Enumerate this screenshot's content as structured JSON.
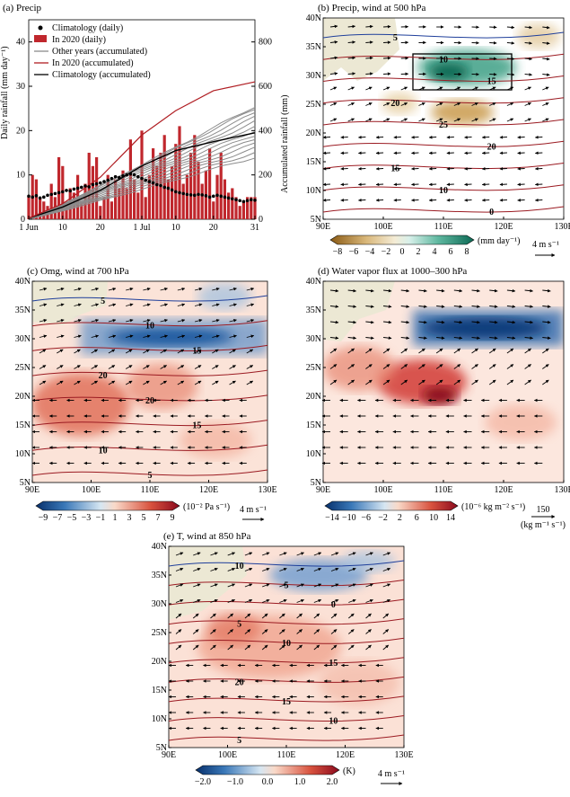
{
  "chart_data": [
    {
      "type": "bar",
      "panel": "(a) Precip",
      "xlabel": "",
      "ylabel_left": "Daily rainfall (mm day⁻¹)",
      "ylabel_right": "Accumulated rainfall (mm)",
      "ylim_left": [
        0,
        45
      ],
      "ylim_right": [
        0,
        900
      ],
      "left_ticks": [
        "0",
        "10",
        "20",
        "30",
        "40"
      ],
      "right_ticks": [
        "0",
        "200",
        "400",
        "600",
        "800"
      ],
      "x_ticks": [
        "1 Jun",
        "10",
        "20",
        "1 Jul",
        "10",
        "20",
        "31"
      ],
      "x_tick_days": [
        1,
        10,
        20,
        31,
        40,
        50,
        61
      ],
      "legend": [
        {
          "label": "Climatology (daily)",
          "kind": "dot",
          "color": "#000000"
        },
        {
          "label": "In 2020 (daily)",
          "kind": "bar",
          "color": "#c0272d"
        },
        {
          "label": "Other years (accumulated)",
          "kind": "line",
          "color": "#8c8c8c"
        },
        {
          "label": "In 2020 (accumulated)",
          "kind": "line",
          "color": "#b01e23"
        },
        {
          "label": "Climatology (accumulated)",
          "kind": "line",
          "color": "#000000"
        }
      ],
      "series": [
        {
          "name": "In 2020 (daily)",
          "x": [
            1,
            2,
            3,
            4,
            5,
            6,
            7,
            8,
            9,
            10,
            11,
            12,
            13,
            14,
            15,
            16,
            17,
            18,
            19,
            20,
            21,
            22,
            23,
            24,
            25,
            26,
            27,
            28,
            29,
            30,
            31,
            32,
            33,
            34,
            35,
            36,
            37,
            38,
            39,
            40,
            41,
            42,
            43,
            44,
            45,
            46,
            47,
            48,
            49,
            50,
            51,
            52,
            53,
            54,
            55,
            56,
            57,
            58,
            59,
            60,
            61
          ],
          "values": [
            5,
            10,
            9,
            5,
            4,
            3,
            8,
            5,
            14,
            12,
            4,
            7,
            6,
            10,
            4,
            8,
            15,
            12,
            14,
            3,
            5,
            10,
            4,
            9,
            7,
            11,
            7,
            18,
            9,
            6,
            20,
            5,
            10,
            16,
            12,
            15,
            19,
            9,
            12,
            17,
            21,
            8,
            10,
            15,
            19,
            13,
            8,
            11,
            16,
            4,
            10,
            15,
            9,
            6,
            7,
            5,
            3,
            4,
            5,
            5,
            5
          ]
        },
        {
          "name": "Climatology (daily)",
          "x": [
            1,
            2,
            3,
            4,
            5,
            6,
            7,
            8,
            9,
            10,
            11,
            12,
            13,
            14,
            15,
            16,
            17,
            18,
            19,
            20,
            21,
            22,
            23,
            24,
            25,
            26,
            27,
            28,
            29,
            30,
            31,
            32,
            33,
            34,
            35,
            36,
            37,
            38,
            39,
            40,
            41,
            42,
            43,
            44,
            45,
            46,
            47,
            48,
            49,
            50,
            51,
            52,
            53,
            54,
            55,
            56,
            57,
            58,
            59,
            60,
            61
          ],
          "values": [
            5.2,
            5.0,
            5.3,
            4.8,
            5.0,
            5.4,
            5.6,
            5.8,
            6.0,
            6.2,
            6.5,
            6.4,
            6.8,
            7.0,
            7.2,
            7.5,
            7.3,
            7.8,
            8.0,
            8.2,
            8.5,
            8.8,
            9.2,
            9.6,
            9.4,
            9.8,
            10.0,
            10.2,
            10.0,
            9.6,
            9.2,
            8.8,
            8.5,
            8.2,
            7.8,
            7.6,
            7.2,
            7.0,
            6.6,
            6.2,
            6.0,
            5.8,
            5.6,
            5.5,
            5.4,
            5.6,
            5.5,
            5.3,
            5.0,
            5.2,
            5.4,
            5.2,
            5.0,
            4.8,
            4.6,
            4.4,
            4.2,
            4.0,
            4.2,
            4.4,
            4.3
          ]
        },
        {
          "name": "In 2020 (accumulated)",
          "x": [
            1,
            10,
            20,
            31,
            40,
            50,
            61
          ],
          "values": [
            5,
            70,
            190,
            380,
            490,
            580,
            620
          ]
        },
        {
          "name": "Climatology (accumulated)",
          "x": [
            1,
            10,
            20,
            31,
            40,
            50,
            61
          ],
          "values": [
            5,
            55,
            130,
            240,
            310,
            350,
            390
          ]
        }
      ]
    },
    {
      "type": "heatmap",
      "panel": "(b) Precip, wind at 500 hPa",
      "colorbar_ticks": [
        "−8",
        "−6",
        "−4",
        "−2",
        "0",
        "2",
        "4",
        "6",
        "8"
      ],
      "colorbar_unit": "(mm day⁻¹)",
      "wind_ref": "4 m s⁻¹",
      "contour_labels": [
        "5",
        "10",
        "15",
        "20",
        "25",
        "20",
        "15",
        "10",
        "0"
      ]
    },
    {
      "type": "heatmap",
      "panel": "(c) Omg, wind at 700 hPa",
      "colorbar_ticks": [
        "−9",
        "−7",
        "−5",
        "−3",
        "−1",
        "1",
        "3",
        "5",
        "7",
        "9"
      ],
      "colorbar_unit": "(10⁻² Pa s⁻¹)",
      "wind_ref": "4 m s⁻¹",
      "contour_labels": [
        "5",
        "10",
        "15",
        "20",
        "20",
        "15",
        "10",
        "5"
      ]
    },
    {
      "type": "heatmap",
      "panel": "(d) Water vapor flux at 1000–300 hPa",
      "colorbar_ticks": [
        "−14",
        "−10",
        "−6",
        "−2",
        "2",
        "6",
        "10",
        "14"
      ],
      "colorbar_unit": "(10⁻⁶ kg m⁻² s⁻¹)",
      "wind_ref": "150",
      "wind_ref_unit": "(kg m⁻¹ s⁻¹)",
      "contour_labels": []
    },
    {
      "type": "heatmap",
      "panel": "(e) T, wind at 850 hPa",
      "colorbar_ticks": [
        "−2.0",
        "−1.0",
        "0.0",
        "1.0",
        "2.0"
      ],
      "colorbar_unit": "(K)",
      "wind_ref": "4 m s⁻¹",
      "contour_labels": [
        "10",
        "5",
        "0",
        "5",
        "10",
        "15",
        "20",
        "15",
        "10",
        "5"
      ]
    }
  ],
  "map_axes": {
    "lon_ticks": [
      "90E",
      "100E",
      "110E",
      "120E",
      "130E"
    ],
    "lat_ticks": [
      "40N",
      "35N",
      "30N",
      "25N",
      "20N",
      "15N",
      "10N",
      "5N"
    ]
  },
  "colors": {
    "bar": "#c0272d",
    "red_line": "#b01e23",
    "grey_line": "#8c8c8c",
    "contour": "#9b1b22",
    "blue_contour": "#1f3f9b",
    "land": "#ece8d4"
  }
}
